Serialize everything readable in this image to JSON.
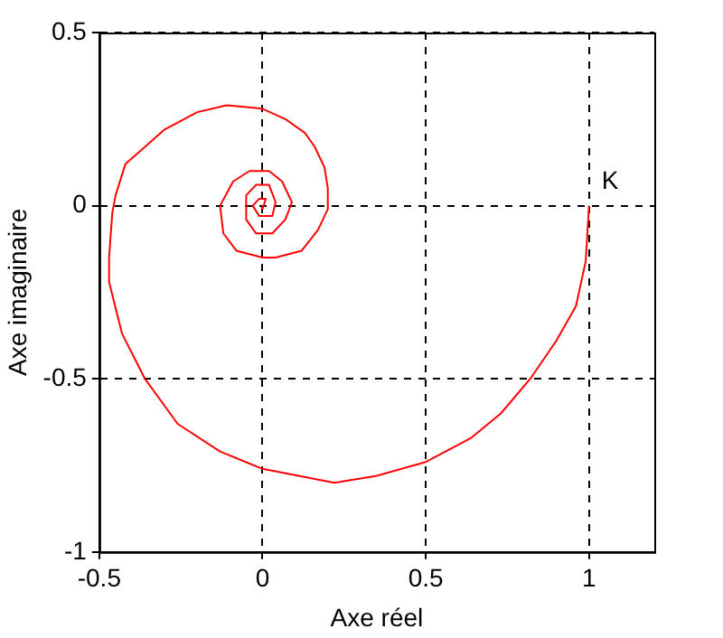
{
  "chart_data": {
    "type": "line",
    "xlabel": "Axe réel",
    "ylabel": "Axe imaginaire",
    "xlim": [
      -0.5,
      1.2
    ],
    "ylim": [
      -1,
      0.5
    ],
    "xticks": [
      -0.5,
      0,
      0.5,
      1
    ],
    "yticks": [
      -1,
      -0.5,
      0,
      0.5
    ],
    "grid": true,
    "marker": "none",
    "line_style": "solid",
    "annotations": [
      {
        "text": "K",
        "x": 1,
        "y": 0
      }
    ],
    "series": [
      {
        "color": "#ff0000",
        "x": [
          1,
          0.99,
          0.96,
          0.9,
          0.82,
          0.73,
          0.64,
          0.5,
          0.35,
          0.22,
          0.11,
          0,
          -0.13,
          -0.26,
          -0.36,
          -0.43,
          -0.47,
          -0.47,
          -0.46,
          -0.45,
          -0.42,
          -0.36,
          -0.3,
          -0.2,
          -0.11,
          0,
          0.07,
          0.13,
          0.16,
          0.19,
          0.2,
          0.2,
          0.17,
          0.12,
          0.04,
          0,
          -0.08,
          -0.12,
          -0.13,
          -0.09,
          -0.04,
          0.02,
          0.06,
          0.09,
          0.07,
          0.03,
          -0.02,
          -0.05,
          -0.05,
          -0.02,
          0.02,
          0.04,
          0.03,
          -0.01,
          -0.03,
          -0.01,
          0.01,
          0,
          0
        ],
        "values": [
          0,
          -0.16,
          -0.29,
          -0.39,
          -0.5,
          -0.6,
          -0.67,
          -0.74,
          -0.78,
          -0.8,
          -0.78,
          -0.76,
          -0.71,
          -0.63,
          -0.5,
          -0.37,
          -0.22,
          -0.15,
          -0.02,
          0.03,
          0.12,
          0.17,
          0.22,
          0.27,
          0.29,
          0.28,
          0.25,
          0.21,
          0.17,
          0.11,
          0.05,
          -0.01,
          -0.07,
          -0.13,
          -0.15,
          -0.15,
          -0.13,
          -0.08,
          0,
          0.07,
          0.1,
          0.1,
          0.07,
          0.01,
          -0.04,
          -0.08,
          -0.08,
          -0.04,
          0.03,
          0.06,
          0.06,
          0.01,
          -0.03,
          -0.03,
          0,
          0.02,
          0.02,
          -0.01,
          0
        ]
      }
    ]
  }
}
